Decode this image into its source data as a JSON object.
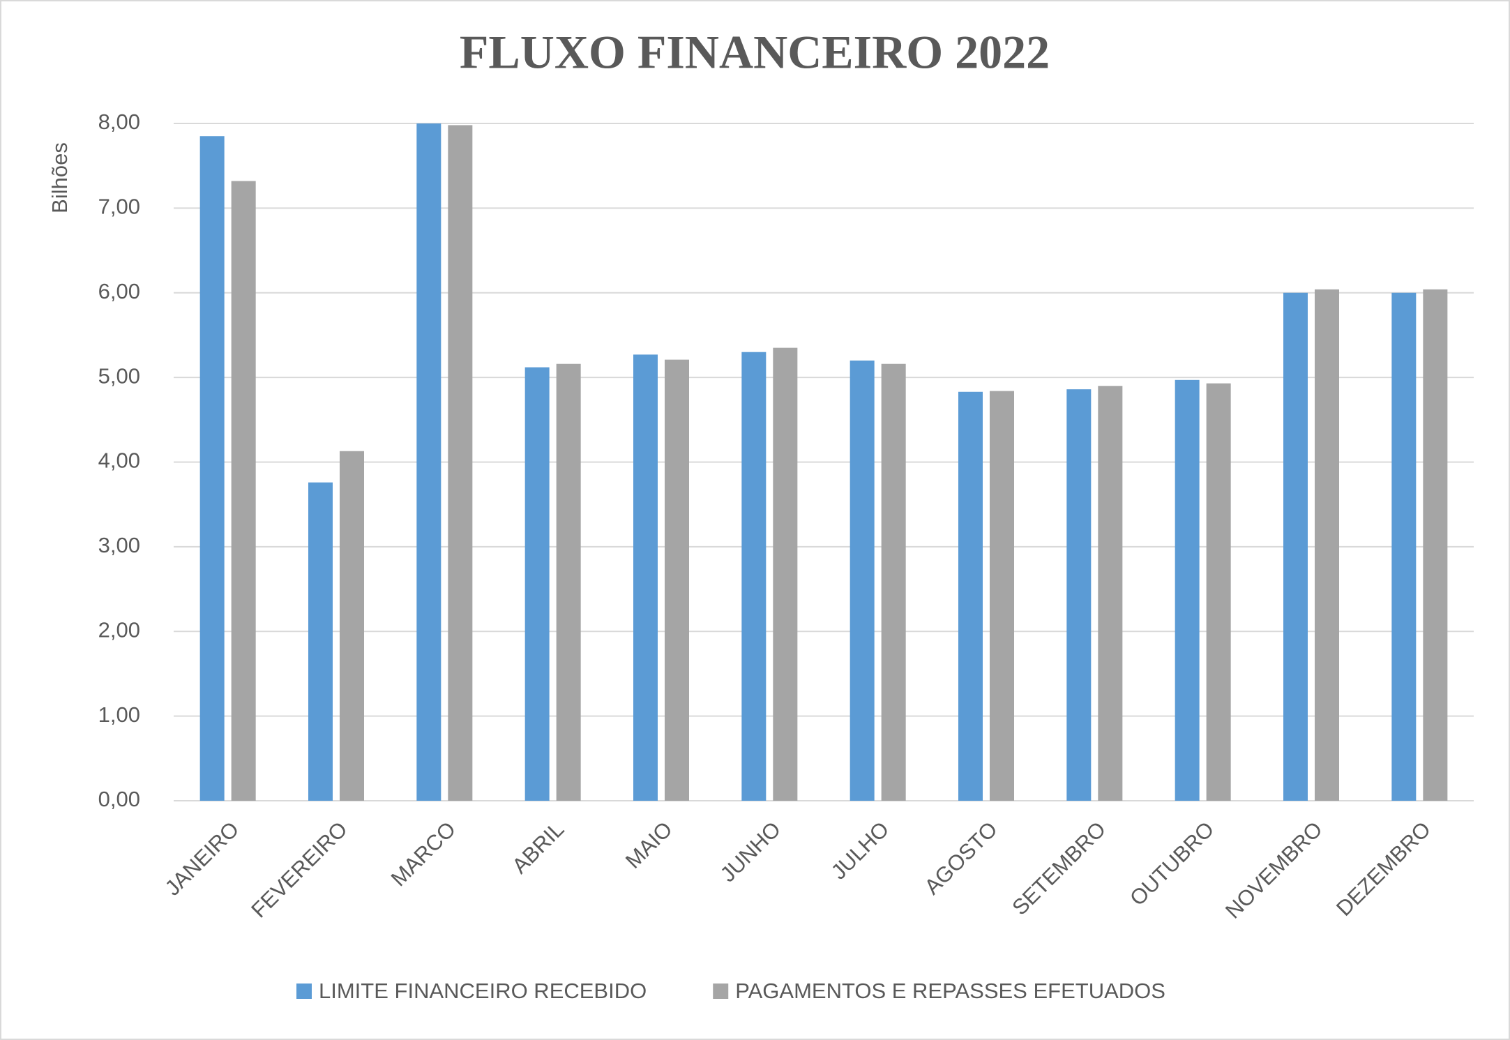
{
  "chart_data": {
    "type": "bar",
    "title": "FLUXO FINANCEIRO 2022",
    "y_label": "Bilhões",
    "categories": [
      "JANEIRO",
      "FEVEREIRO",
      "MARCO",
      "ABRIL",
      "MAIO",
      "JUNHO",
      "JULHO",
      "AGOSTO",
      "SETEMBRO",
      "OUTUBRO",
      "NOVEMBRO",
      "DEZEMBRO"
    ],
    "series": [
      {
        "name": "LIMITE FINANCEIRO RECEBIDO",
        "color": "#5b9bd5",
        "values": [
          7.85,
          3.76,
          8.0,
          5.12,
          5.27,
          5.3,
          5.2,
          4.83,
          4.86,
          4.97,
          6.0,
          6.0
        ]
      },
      {
        "name": "PAGAMENTOS E REPASSES EFETUADOS",
        "color": "#a5a5a5",
        "values": [
          7.32,
          4.13,
          7.98,
          5.16,
          5.21,
          5.35,
          5.16,
          4.84,
          4.9,
          4.93,
          6.04,
          6.04
        ]
      }
    ],
    "ylim": [
      0,
      8
    ],
    "yticks": [
      {
        "value": 0,
        "label": "0,00"
      },
      {
        "value": 1,
        "label": "1,00"
      },
      {
        "value": 2,
        "label": "2,00"
      },
      {
        "value": 3,
        "label": "3,00"
      },
      {
        "value": 4,
        "label": "4,00"
      },
      {
        "value": 5,
        "label": "5,00"
      },
      {
        "value": 6,
        "label": "6,00"
      },
      {
        "value": 7,
        "label": "7,00"
      },
      {
        "value": 8,
        "label": "8,00"
      }
    ],
    "grid": true,
    "legend": "bottom"
  }
}
